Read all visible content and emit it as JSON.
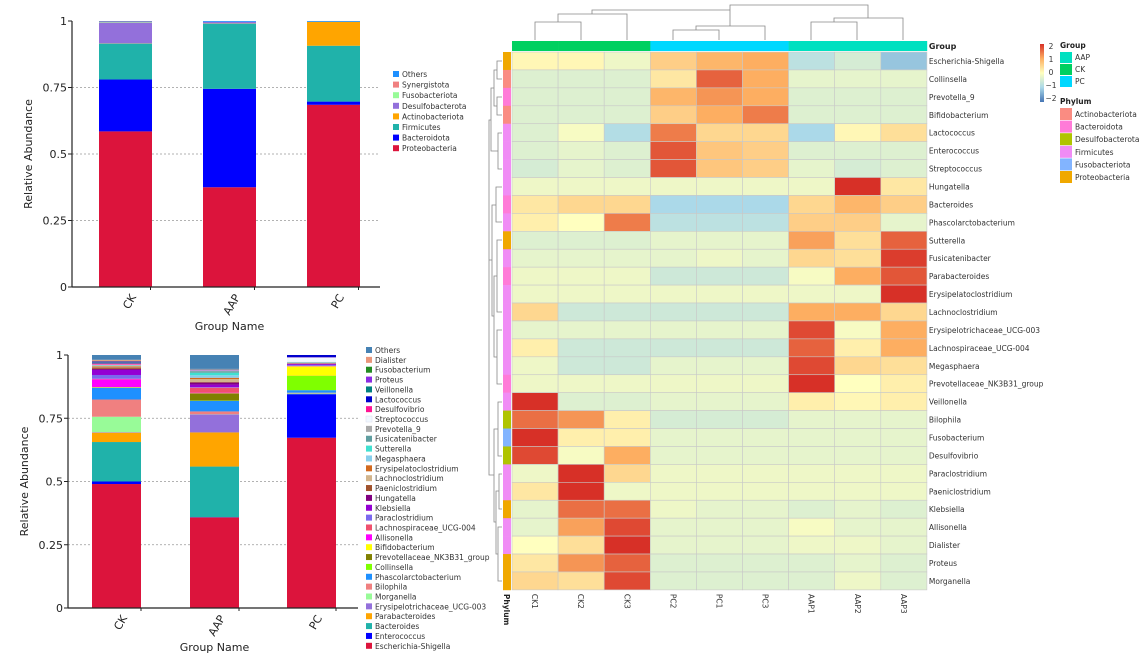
{
  "chart_data": [
    {
      "type": "bar",
      "stacked": true,
      "categories": [
        "CK",
        "AAP",
        "PC"
      ],
      "xlabel": "Group Name",
      "ylabel": "Relative Abundance",
      "ylim": [
        0,
        1
      ],
      "yticks": [
        "0",
        "0.25",
        "0.5",
        "0.75",
        "1"
      ],
      "grid": "dashed horizontal",
      "legend": "right",
      "series": [
        {
          "name": "Proteobacteria",
          "color": "#DC143C",
          "values": [
            0.585,
            0.375,
            0.685
          ]
        },
        {
          "name": "Bacteroidota",
          "color": "#0000FF",
          "values": [
            0.195,
            0.37,
            0.012
          ]
        },
        {
          "name": "Firmicutes",
          "color": "#20B2AA",
          "values": [
            0.135,
            0.245,
            0.21
          ]
        },
        {
          "name": "Actinobacteriota",
          "color": "#FFA500",
          "values": [
            0.001,
            0.001,
            0.09
          ]
        },
        {
          "name": "Desulfobacterota",
          "color": "#9370DB",
          "values": [
            0.078,
            0.006,
            0.0
          ]
        },
        {
          "name": "Fusobacteriota",
          "color": "#98FB98",
          "values": [
            0.002,
            0.0,
            0.0
          ]
        },
        {
          "name": "Synergistota",
          "color": "#F08080",
          "values": [
            0.002,
            0.0,
            0.0
          ]
        },
        {
          "name": "Others",
          "color": "#1E90FF",
          "values": [
            0.002,
            0.003,
            0.003
          ]
        }
      ]
    },
    {
      "type": "bar",
      "stacked": true,
      "categories": [
        "CK",
        "AAP",
        "PC"
      ],
      "xlabel": "Group Name",
      "ylabel": "Relative Abundance",
      "ylim": [
        0,
        1
      ],
      "yticks": [
        "0",
        "0.25",
        "0.5",
        "0.75",
        "1"
      ],
      "grid": "dashed horizontal",
      "legend": "right",
      "series": [
        {
          "name": "Escherichia-Shigella",
          "color": "#DC143C",
          "values": [
            0.49,
            0.358,
            0.673
          ]
        },
        {
          "name": "Enterococcus",
          "color": "#0000FF",
          "values": [
            0.01,
            0.001,
            0.172
          ]
        },
        {
          "name": "Bacteroides",
          "color": "#20B2AA",
          "values": [
            0.156,
            0.2,
            0.002
          ]
        },
        {
          "name": "Parabacteroides",
          "color": "#FFA500",
          "values": [
            0.037,
            0.135,
            0.001
          ]
        },
        {
          "name": "Erysipelotrichaceae_UCG-003",
          "color": "#9370DB",
          "values": [
            0.002,
            0.071,
            0.001
          ]
        },
        {
          "name": "Morganella",
          "color": "#98FB98",
          "values": [
            0.061,
            0.001,
            0.001
          ]
        },
        {
          "name": "Bilophila",
          "color": "#F08080",
          "values": [
            0.068,
            0.011,
            0.001
          ]
        },
        {
          "name": "Phascolarctobacterium",
          "color": "#1E90FF",
          "values": [
            0.046,
            0.042,
            0.01
          ]
        },
        {
          "name": "Collinsella",
          "color": "#7FFF00",
          "values": [
            0.001,
            0.001,
            0.056
          ]
        },
        {
          "name": "Prevotellaceae_NK3B31_group",
          "color": "#808000",
          "values": [
            0.001,
            0.028,
            0.001
          ]
        },
        {
          "name": "Bifidobacterium",
          "color": "#FFFF00",
          "values": [
            0.001,
            0.001,
            0.037
          ]
        },
        {
          "name": "Allisonella",
          "color": "#FF00FF",
          "values": [
            0.031,
            0.002,
            0.001
          ]
        },
        {
          "name": "Lachnospiraceae_UCG-004",
          "color": "#F0506E",
          "values": [
            0.002,
            0.02,
            0.001
          ]
        },
        {
          "name": "Paraclostridium",
          "color": "#7B68EE",
          "values": [
            0.015,
            0.002,
            0.004
          ]
        },
        {
          "name": "Klebsiella",
          "color": "#9400D3",
          "values": [
            0.02,
            0.01,
            0.004
          ]
        },
        {
          "name": "Hungatella",
          "color": "#800080",
          "values": [
            0.004,
            0.008,
            0.001
          ]
        },
        {
          "name": "Paeniclostridium",
          "color": "#A0522D",
          "values": [
            0.006,
            0.002,
            0.001
          ]
        },
        {
          "name": "Lachnoclostridium",
          "color": "#D2B48C",
          "values": [
            0.004,
            0.012,
            0.001
          ]
        },
        {
          "name": "Erysipelatoclostridium",
          "color": "#D2691E",
          "values": [
            0.002,
            0.005,
            0.001
          ]
        },
        {
          "name": "Megasphaera",
          "color": "#87CEEB",
          "values": [
            0.001,
            0.01,
            0.001
          ]
        },
        {
          "name": "Sutterella",
          "color": "#40E0D0",
          "values": [
            0.001,
            0.01,
            0.001
          ]
        },
        {
          "name": "Fusicatenibacter",
          "color": "#5F9EA0",
          "values": [
            0.001,
            0.006,
            0.001
          ]
        },
        {
          "name": "Prevotella_9",
          "color": "#A9A9A9",
          "values": [
            0.001,
            0.002,
            0.001
          ]
        },
        {
          "name": "Streptococcus",
          "color": "#F0F8FF",
          "values": [
            0.001,
            0.001,
            0.017
          ]
        },
        {
          "name": "Desulfovibrio",
          "color": "#FF1493",
          "values": [
            0.004,
            0.001,
            0.001
          ]
        },
        {
          "name": "Lactococcus",
          "color": "#0000CD",
          "values": [
            0.001,
            0.001,
            0.009
          ]
        },
        {
          "name": "Veillonella",
          "color": "#008080",
          "values": [
            0.004,
            0.001,
            0.001
          ]
        },
        {
          "name": "Proteus",
          "color": "#8A2BE2",
          "values": [
            0.004,
            0.001,
            0.001
          ]
        },
        {
          "name": "Fusobacterium",
          "color": "#228B22",
          "values": [
            0.002,
            0.001,
            0.001
          ]
        },
        {
          "name": "Dialister",
          "color": "#E9967A",
          "values": [
            0.004,
            0.001,
            0.001
          ]
        },
        {
          "name": "Others",
          "color": "#4682B4",
          "values": [
            0.019,
            0.056,
            0.005
          ]
        }
      ]
    },
    {
      "type": "heatmap",
      "columns": [
        "CK1",
        "CK2",
        "CK3",
        "PC2",
        "PC1",
        "PC3",
        "AAP1",
        "AAP2",
        "AAP3"
      ],
      "column_groups": [
        "CK",
        "CK",
        "CK",
        "PC",
        "PC",
        "PC",
        "AAP",
        "AAP",
        "AAP"
      ],
      "group_label": "Group",
      "phylum_label": "Phylum",
      "scale": {
        "min": -2,
        "max": 2,
        "ticks": [
          "2",
          "1",
          "0",
          "−1",
          "−2"
        ],
        "colors": [
          "#4575B4",
          "#ABD9E9",
          "#FFFFBF",
          "#FDAE61",
          "#D73027"
        ]
      },
      "group_legend": {
        "title": "Group",
        "items": [
          {
            "name": "AAP",
            "color": "#00E0C0"
          },
          {
            "name": "CK",
            "color": "#00D060"
          },
          {
            "name": "PC",
            "color": "#00D8FF"
          }
        ]
      },
      "phylum_legend": {
        "title": "Phylum",
        "items": [
          {
            "name": "Actinobacteriota",
            "color": "#FA8C82"
          },
          {
            "name": "Bacteroidota",
            "color": "#FF7BD8"
          },
          {
            "name": "Desulfobacterota",
            "color": "#B0C400"
          },
          {
            "name": "Firmicutes",
            "color": "#F08CF5"
          },
          {
            "name": "Fusobacteriota",
            "color": "#82B4FF"
          },
          {
            "name": "Proteobacteria",
            "color": "#F0A800"
          }
        ]
      },
      "rows": [
        {
          "name": "Escherichia-Shigella",
          "phylum": "Proteobacteria",
          "values": [
            0.1,
            0.1,
            -0.2,
            0.6,
            0.9,
            1.0,
            -0.8,
            -0.5,
            -1.2
          ]
        },
        {
          "name": "Collinsella",
          "phylum": "Actinobacteriota",
          "values": [
            -0.4,
            -0.4,
            -0.4,
            0.3,
            1.6,
            1.0,
            -0.3,
            -0.3,
            -0.3
          ]
        },
        {
          "name": "Prevotella_9",
          "phylum": "Bacteroidota",
          "values": [
            -0.4,
            -0.4,
            -0.4,
            0.9,
            1.2,
            1.0,
            -0.4,
            -0.4,
            -0.4
          ]
        },
        {
          "name": "Bifidobacterium",
          "phylum": "Actinobacteriota",
          "values": [
            -0.4,
            -0.4,
            -0.4,
            0.6,
            1.0,
            1.4,
            -0.4,
            -0.4,
            -0.4
          ]
        },
        {
          "name": "Lactococcus",
          "phylum": "Firmicutes",
          "values": [
            -0.4,
            -0.1,
            -0.9,
            1.4,
            0.5,
            0.5,
            -1.0,
            0.1,
            0.4
          ]
        },
        {
          "name": "Enterococcus",
          "phylum": "Firmicutes",
          "values": [
            -0.4,
            -0.3,
            -0.4,
            1.7,
            0.7,
            0.6,
            -0.4,
            -0.4,
            -0.4
          ]
        },
        {
          "name": "Streptococcus",
          "phylum": "Firmicutes",
          "values": [
            -0.5,
            -0.3,
            -0.4,
            1.7,
            0.7,
            0.6,
            -0.3,
            -0.5,
            -0.4
          ]
        },
        {
          "name": "Hungatella",
          "phylum": "Firmicutes",
          "values": [
            -0.2,
            -0.2,
            -0.2,
            -0.2,
            -0.2,
            -0.2,
            -0.2,
            2.0,
            0.3
          ]
        },
        {
          "name": "Bacteroides",
          "phylum": "Bacteroidota",
          "values": [
            0.3,
            0.5,
            0.5,
            -1.0,
            -1.0,
            -1.0,
            0.5,
            0.9,
            0.6
          ]
        },
        {
          "name": "Phascolarctobacterium",
          "phylum": "Firmicutes",
          "values": [
            0.2,
            0.0,
            1.4,
            -0.8,
            -0.8,
            -0.8,
            0.6,
            0.6,
            -0.3
          ]
        },
        {
          "name": "Sutterella",
          "phylum": "Proteobacteria",
          "values": [
            -0.4,
            -0.4,
            -0.4,
            -0.3,
            -0.3,
            -0.3,
            1.1,
            0.4,
            1.6
          ]
        },
        {
          "name": "Fusicatenibacter",
          "phylum": "Firmicutes",
          "values": [
            -0.3,
            -0.3,
            -0.3,
            -0.3,
            -0.2,
            -0.3,
            0.5,
            0.4,
            1.9
          ]
        },
        {
          "name": "Parabacteroides",
          "phylum": "Bacteroidota",
          "values": [
            -0.2,
            -0.2,
            -0.2,
            -0.6,
            -0.6,
            -0.6,
            -0.1,
            1.0,
            1.7
          ]
        },
        {
          "name": "Erysipelatoclostridium",
          "phylum": "Firmicutes",
          "values": [
            -0.2,
            -0.2,
            -0.2,
            -0.2,
            -0.2,
            -0.2,
            -0.2,
            -0.2,
            2.1
          ]
        },
        {
          "name": "Lachnoclostridium",
          "phylum": "Firmicutes",
          "values": [
            0.5,
            -0.6,
            -0.6,
            -0.6,
            -0.6,
            -0.6,
            1.0,
            1.0,
            0.5
          ]
        },
        {
          "name": "Erysipelotrichaceae_UCG-003",
          "phylum": "Firmicutes",
          "values": [
            -0.3,
            -0.3,
            -0.3,
            -0.3,
            -0.3,
            -0.3,
            1.8,
            -0.1,
            1.0
          ]
        },
        {
          "name": "Lachnospiraceae_UCG-004",
          "phylum": "Firmicutes",
          "values": [
            0.2,
            -0.6,
            -0.6,
            -0.6,
            -0.6,
            -0.6,
            1.6,
            0.2,
            1.0
          ]
        },
        {
          "name": "Megasphaera",
          "phylum": "Firmicutes",
          "values": [
            -0.2,
            -0.6,
            -0.6,
            -0.3,
            -0.3,
            -0.3,
            1.8,
            0.5,
            0.4
          ]
        },
        {
          "name": "Prevotellaceae_NK3B31_group",
          "phylum": "Bacteroidota",
          "values": [
            -0.2,
            -0.2,
            -0.2,
            -0.2,
            -0.2,
            -0.2,
            2.1,
            0.0,
            0.2
          ]
        },
        {
          "name": "Veillonella",
          "phylum": "Firmicutes",
          "values": [
            2.1,
            -0.4,
            -0.4,
            -0.3,
            -0.3,
            -0.3,
            0.2,
            0.1,
            0.2
          ]
        },
        {
          "name": "Bilophila",
          "phylum": "Desulfobacterota",
          "values": [
            1.5,
            1.2,
            0.2,
            -0.5,
            -0.5,
            -0.5,
            -0.3,
            -0.3,
            -0.3
          ]
        },
        {
          "name": "Fusobacterium",
          "phylum": "Fusobacteriota",
          "values": [
            2.1,
            0.2,
            0.2,
            -0.3,
            -0.3,
            -0.3,
            -0.3,
            -0.3,
            -0.3
          ]
        },
        {
          "name": "Desulfovibrio",
          "phylum": "Desulfobacterota",
          "values": [
            1.8,
            -0.1,
            1.0,
            -0.3,
            -0.3,
            -0.3,
            -0.3,
            -0.3,
            -0.3
          ]
        },
        {
          "name": "Paraclostridium",
          "phylum": "Firmicutes",
          "values": [
            -0.2,
            2.1,
            0.5,
            -0.2,
            -0.2,
            -0.2,
            -0.2,
            -0.2,
            -0.2
          ]
        },
        {
          "name": "Paeniclostridium",
          "phylum": "Firmicutes",
          "values": [
            0.3,
            2.1,
            -0.2,
            -0.2,
            -0.2,
            -0.2,
            -0.2,
            -0.2,
            -0.2
          ]
        },
        {
          "name": "Klebsiella",
          "phylum": "Proteobacteria",
          "values": [
            -0.3,
            1.5,
            1.5,
            -0.2,
            -0.3,
            -0.3,
            -0.4,
            -0.3,
            -0.4
          ]
        },
        {
          "name": "Allisonella",
          "phylum": "Firmicutes",
          "values": [
            -0.3,
            1.1,
            1.8,
            -0.3,
            -0.3,
            -0.3,
            -0.1,
            -0.3,
            -0.3
          ]
        },
        {
          "name": "Dialister",
          "phylum": "Firmicutes",
          "values": [
            0.0,
            0.4,
            2.1,
            -0.3,
            -0.3,
            -0.3,
            -0.2,
            -0.2,
            -0.3
          ]
        },
        {
          "name": "Proteus",
          "phylum": "Proteobacteria",
          "values": [
            0.3,
            1.2,
            1.6,
            -0.4,
            -0.4,
            -0.4,
            -0.4,
            -0.3,
            -0.4
          ]
        },
        {
          "name": "Morganella",
          "phylum": "Proteobacteria",
          "values": [
            0.5,
            0.4,
            1.8,
            -0.4,
            -0.4,
            -0.4,
            -0.4,
            -0.2,
            -0.4
          ]
        }
      ]
    }
  ]
}
